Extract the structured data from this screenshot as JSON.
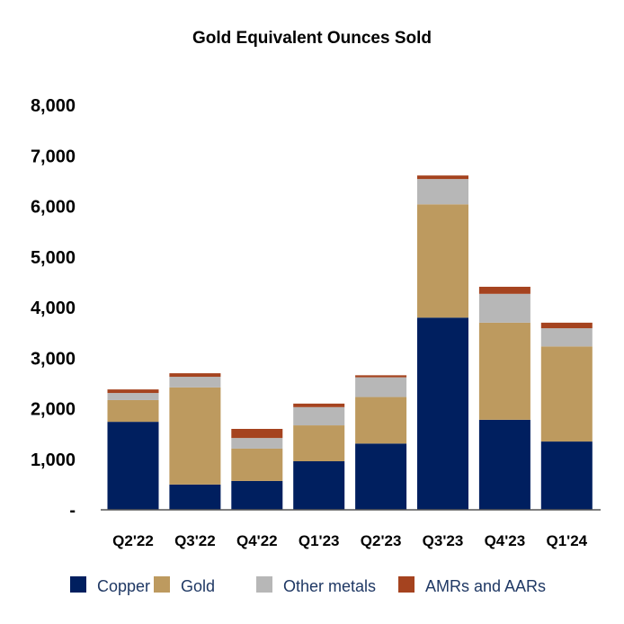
{
  "chart_data": {
    "type": "bar",
    "stacked": true,
    "title": "Gold Equivalent Ounces Sold",
    "xlabel": "",
    "ylabel": "",
    "ylim": [
      0,
      8000
    ],
    "yticks": [
      0,
      1000,
      2000,
      3000,
      4000,
      5000,
      6000,
      7000,
      8000
    ],
    "ytick_labels": [
      "-",
      "1,000",
      "2,000",
      "3,000",
      "4,000",
      "5,000",
      "6,000",
      "7,000",
      "8,000"
    ],
    "grid": false,
    "legend_position": "bottom",
    "categories": [
      "Q2'22",
      "Q3'22",
      "Q4'22",
      "Q1'23",
      "Q2'23",
      "Q3'23",
      "Q4'23",
      "Q1'24"
    ],
    "series": [
      {
        "name": "Copper",
        "color": "#001f5f",
        "values": [
          1740,
          500,
          570,
          960,
          1310,
          3800,
          1780,
          1350
        ]
      },
      {
        "name": "Gold",
        "color": "#bd9a5f",
        "values": [
          430,
          1920,
          640,
          710,
          920,
          2240,
          1920,
          1880
        ]
      },
      {
        "name": "Other metals",
        "color": "#b7b7b7",
        "values": [
          140,
          210,
          210,
          360,
          390,
          500,
          570,
          360
        ]
      },
      {
        "name": "AMRs and AARs",
        "color": "#a5431f",
        "values": [
          70,
          70,
          180,
          70,
          40,
          70,
          140,
          110
        ]
      }
    ]
  }
}
